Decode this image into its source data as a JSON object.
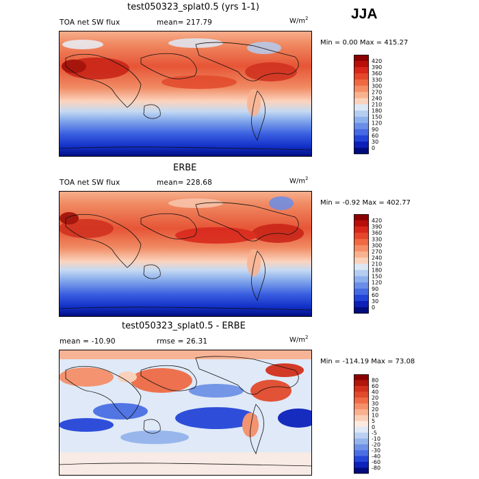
{
  "season": "JJA",
  "chart_data": [
    {
      "type": "heatmap",
      "title": "test050323_splat0.5 (yrs 1-1)",
      "variable": "TOA net SW flux",
      "mean_label": "mean=",
      "mean_value": "217.79",
      "units_base": "W/m",
      "units_exp": "2",
      "minmax_text": "Min =    0.00 Max = 415.27",
      "min": 0.0,
      "max": 415.27,
      "colorbar_levels": [
        "420",
        "390",
        "360",
        "330",
        "300",
        "270",
        "240",
        "210",
        "180",
        "150",
        "120",
        "90",
        "60",
        "30",
        "0"
      ],
      "colorbar_colors": [
        "#8b0000",
        "#b80f0a",
        "#d8261b",
        "#e5462c",
        "#ef6a43",
        "#f58e66",
        "#f9b28f",
        "#fbd3bd",
        "#dde8f6",
        "#b4cdf0",
        "#8eb0ec",
        "#6a8ee8",
        "#4669e4",
        "#2344d8",
        "#0c20b8",
        "#000c7e"
      ]
    },
    {
      "type": "heatmap",
      "title": "ERBE",
      "variable": "TOA net SW flux",
      "mean_label": "mean=",
      "mean_value": "228.68",
      "units_base": "W/m",
      "units_exp": "2",
      "minmax_text": "Min =  -0.92 Max = 402.77",
      "min": -0.92,
      "max": 402.77,
      "colorbar_levels": [
        "420",
        "390",
        "360",
        "330",
        "300",
        "270",
        "240",
        "210",
        "180",
        "150",
        "120",
        "90",
        "60",
        "30",
        "0"
      ],
      "colorbar_colors": [
        "#8b0000",
        "#b80f0a",
        "#d8261b",
        "#e5462c",
        "#ef6a43",
        "#f58e66",
        "#f9b28f",
        "#fbd3bd",
        "#dde8f6",
        "#b4cdf0",
        "#8eb0ec",
        "#6a8ee8",
        "#4669e4",
        "#2344d8",
        "#0c20b8",
        "#000c7e"
      ]
    },
    {
      "type": "heatmap",
      "title": "test050323_splat0.5 - ERBE",
      "variable": "",
      "mean_label": "mean =",
      "mean_value": "-10.90",
      "rmse_label": "rmse =",
      "rmse_value": "26.31",
      "units_base": "W/m",
      "units_exp": "2",
      "minmax_text": "Min = -114.19 Max =  73.08",
      "min": -114.19,
      "max": 73.08,
      "colorbar_levels": [
        "80",
        "60",
        "40",
        "20",
        "30",
        "20",
        "10",
        "5",
        "0",
        "-5",
        "-10",
        "-20",
        "-30",
        "-40",
        "-60",
        "-80"
      ],
      "colorbar_colors": [
        "#8b0000",
        "#b0160a",
        "#d2301c",
        "#e24a2c",
        "#ee6b45",
        "#f58f69",
        "#f9b190",
        "#fbcfb7",
        "#fdebe1",
        "#dfe9f7",
        "#bcd1f1",
        "#95b4ec",
        "#6f92e7",
        "#4b6fe3",
        "#2546d9",
        "#0c22bb",
        "#000c7e"
      ]
    }
  ]
}
